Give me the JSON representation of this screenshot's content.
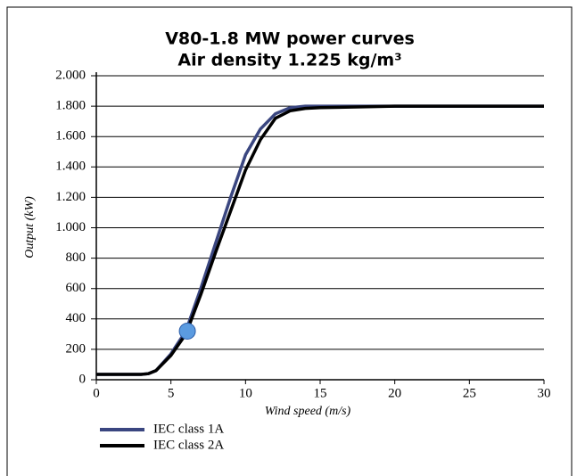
{
  "chart_data": {
    "type": "line",
    "title": "V80-1.8 MW power curves",
    "subtitle": "Air density 1.225 kg/m³",
    "xlabel": "Wind speed (m/s)",
    "ylabel": "Output (kW)",
    "x": [
      0,
      3,
      3.5,
      4,
      5,
      6,
      7,
      8,
      9,
      10,
      11,
      12,
      13,
      14,
      15,
      20,
      30
    ],
    "series": [
      {
        "name": "IEC class 1A",
        "color": "#3a4680",
        "values": [
          35,
          35,
          40,
          60,
          170,
          320,
          600,
          900,
          1200,
          1480,
          1650,
          1750,
          1790,
          1800,
          1800,
          1800,
          1800
        ]
      },
      {
        "name": "IEC class 2A",
        "color": "#000000",
        "values": [
          35,
          35,
          40,
          60,
          160,
          300,
          560,
          840,
          1110,
          1380,
          1580,
          1720,
          1770,
          1785,
          1790,
          1800,
          1800
        ]
      }
    ],
    "marker": {
      "x": 6.1,
      "y": 320,
      "color": "#5b9be0"
    },
    "xlim": [
      0,
      30
    ],
    "xticks": [
      0,
      5,
      10,
      15,
      20,
      25,
      30
    ],
    "ylim": [
      0,
      2000
    ],
    "yticks": [
      0,
      200,
      400,
      600,
      800,
      {
        "value": 1000,
        "label": "1.000"
      },
      {
        "value": 1200,
        "label": "1.200"
      },
      {
        "value": 1400,
        "label": "1.400"
      },
      {
        "value": 1600,
        "label": "1.600"
      },
      {
        "value": 1800,
        "label": "1.800"
      },
      {
        "value": 2000,
        "label": "2.000"
      }
    ],
    "grid": true,
    "legend": "bottom-left"
  }
}
